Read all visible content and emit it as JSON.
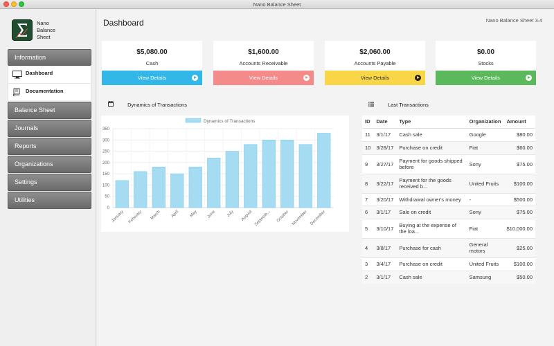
{
  "window": {
    "title": "Nano Balance Sheet"
  },
  "app": {
    "logo_lines": [
      "Nano",
      "Balance",
      "Sheet"
    ]
  },
  "sidebar": {
    "information": "Information",
    "dashboard": "Dashboard",
    "documentation": "Documentation",
    "balance_sheet": "Balance Sheet",
    "journals": "Journals",
    "reports": "Reports",
    "organizations": "Organizations",
    "settings": "Settings",
    "utilities": "Utilities"
  },
  "header": {
    "title": "Dashboard",
    "version": "Nano Balance Sheet 3.4"
  },
  "cards": [
    {
      "amount": "$5,080.00",
      "label": "Cash",
      "button": "View Details",
      "color": "#33b6e8"
    },
    {
      "amount": "$1,600.00",
      "label": "Accounts Receivable",
      "button": "View Details",
      "color": "#f48a8a"
    },
    {
      "amount": "$2,060.00",
      "label": "Accounts Payable",
      "button": "View Details",
      "color": "#f9d548"
    },
    {
      "amount": "$0.00",
      "label": "Stocks",
      "button": "View Details",
      "color": "#5cb85c"
    }
  ],
  "chart_panel": {
    "title": "Dynamics of Transactions"
  },
  "chart_data": {
    "type": "bar",
    "legend": "Dynamics of Transactions",
    "legend_position": "top",
    "categories": [
      "January",
      "February",
      "March",
      "April",
      "May",
      "June",
      "July",
      "August",
      "September",
      "October",
      "November",
      "December"
    ],
    "tick_labels": [
      "January",
      "February",
      "March",
      "April",
      "May",
      "June",
      "July",
      "August",
      "Septemb...",
      "October",
      "November",
      "December"
    ],
    "series": [
      {
        "name": "Dynamics of Transactions",
        "values": [
          120,
          160,
          180,
          150,
          180,
          220,
          250,
          280,
          300,
          300,
          280,
          330
        ]
      }
    ],
    "ylim": [
      0,
      350
    ],
    "yticks": [
      0,
      50,
      100,
      150,
      200,
      250,
      300,
      350
    ],
    "grid": true,
    "bar_color": "#a6dcf2",
    "bar_border": "#7ecbec"
  },
  "transactions": {
    "title": "Last Transactions",
    "columns": [
      "ID",
      "Date",
      "Type",
      "Organization",
      "Amount"
    ],
    "rows": [
      {
        "id": "11",
        "date": "3/1/17",
        "type": "Cash sale",
        "org": "Google",
        "amount": "$80.00"
      },
      {
        "id": "10",
        "date": "3/28/17",
        "type": "Purchase on credit",
        "org": "Fiat",
        "amount": "$60.00"
      },
      {
        "id": "9",
        "date": "3/27/17",
        "type": "Payment for goods shipped before",
        "org": "Sony",
        "amount": "$75.00"
      },
      {
        "id": "8",
        "date": "3/22/17",
        "type": "Payment for the goods received b...",
        "org": "United Fruits",
        "amount": "$100.00"
      },
      {
        "id": "7",
        "date": "3/20/17",
        "type": "Withdrawal owner's money",
        "org": "-",
        "amount": "$500.00"
      },
      {
        "id": "6",
        "date": "3/1/17",
        "type": "Sale on credit",
        "org": "Sony",
        "amount": "$75.00"
      },
      {
        "id": "5",
        "date": "3/10/17",
        "type": "Buying at the expense of the loa...",
        "org": "Fiat",
        "amount": "$10,000.00"
      },
      {
        "id": "4",
        "date": "3/8/17",
        "type": "Purchase for cash",
        "org": "General motors",
        "amount": "$25.00"
      },
      {
        "id": "3",
        "date": "3/4/17",
        "type": "Purchase on credit",
        "org": "United Fruits",
        "amount": "$100.00"
      },
      {
        "id": "2",
        "date": "3/1/17",
        "type": "Cash sale",
        "org": "Samsung",
        "amount": "$50.00"
      }
    ]
  }
}
